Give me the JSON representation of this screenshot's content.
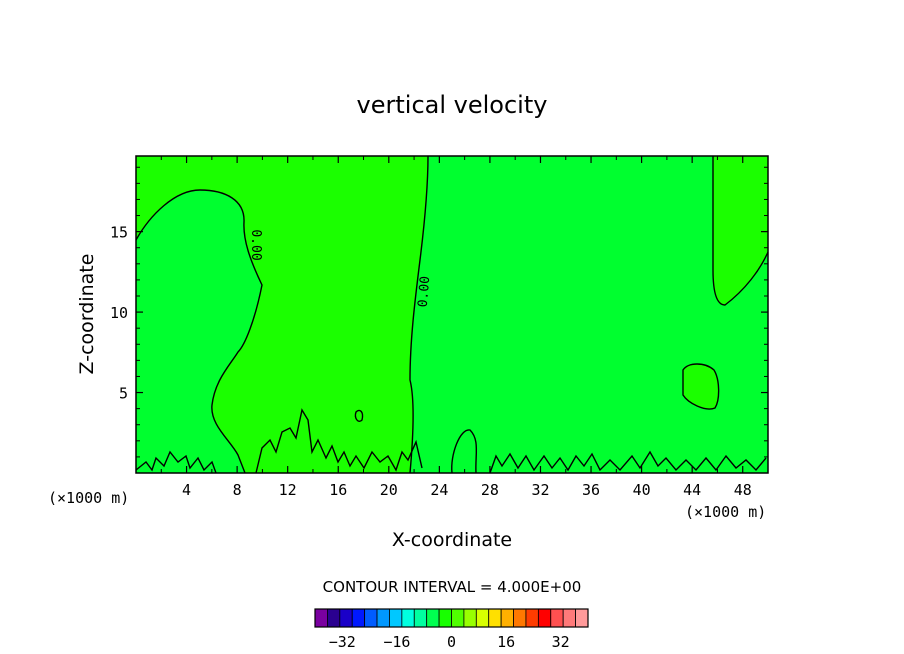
{
  "chart_data": {
    "type": "contour",
    "title": "vertical velocity",
    "xlabel": "X-coordinate",
    "ylabel": "Z-coordinate",
    "x_unit": "(×1000 m)",
    "z_unit": "(×1000 m)",
    "xlim": [
      0,
      50
    ],
    "ylim": [
      0,
      19.7
    ],
    "x_ticks": [
      4,
      8,
      12,
      16,
      20,
      24,
      28,
      32,
      36,
      40,
      44,
      48
    ],
    "y_ticks": [
      5,
      10,
      15
    ],
    "contour_labels": [
      "0.00",
      "0.00"
    ],
    "contour_interval_text": "CONTOUR INTERVAL = 4.000E+00",
    "colorbar": {
      "levels": [
        -36,
        -32,
        -28,
        -24,
        -20,
        -16,
        -12,
        -8,
        -4,
        0,
        4,
        8,
        12,
        16,
        20,
        24,
        28,
        32,
        36
      ],
      "tick_labels": [
        "-32",
        "-16",
        "0",
        "16",
        "32"
      ],
      "colors": [
        "#7a00a0",
        "#2a0090",
        "#1a00c8",
        "#0018ff",
        "#005cff",
        "#0098ff",
        "#00c8ff",
        "#00ffe0",
        "#00ffa0",
        "#00ff50",
        "#18ff00",
        "#50ff00",
        "#98ff00",
        "#d8ff00",
        "#ffe000",
        "#ffb000",
        "#ff7800",
        "#ff3c00",
        "#ff0000",
        "#ff5050",
        "#ff7a7a",
        "#ff9a9a"
      ]
    },
    "regions": [
      {
        "name": "positive band 0 to 4",
        "color": "#1bff00"
      },
      {
        "name": "near-zero negative -4 to 0",
        "color": "#00ff2f"
      }
    ]
  }
}
